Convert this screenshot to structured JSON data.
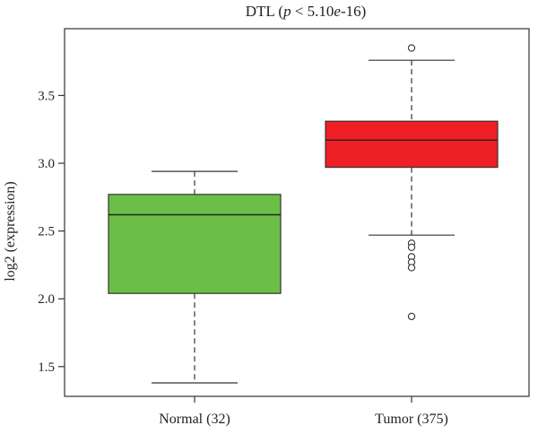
{
  "chart_data": {
    "type": "box",
    "title": {
      "gene": "DTL",
      "p_prefix": " (",
      "p_symbol": "p",
      "p_mid": " < 5.10",
      "p_exp": "e",
      "p_suffix": "-16)"
    },
    "ylabel": "log2 (expression)",
    "xlabel": "",
    "ylim": [
      1.36,
      3.9
    ],
    "yticks": [
      1.5,
      2.0,
      2.5,
      3.0,
      3.5
    ],
    "ytick_labels": [
      "1.5",
      "2.0",
      "2.5",
      "3.0",
      "3.5"
    ],
    "categories": [
      "Normal (32)",
      "Tumor (375)"
    ],
    "groups": [
      {
        "category": "Normal (32)",
        "color": "#6BBF47",
        "whisker_low": 1.38,
        "q1": 2.04,
        "median": 2.62,
        "q3": 2.77,
        "whisker_high": 2.94,
        "outliers": []
      },
      {
        "category": "Tumor (375)",
        "color": "#EE1F25",
        "whisker_low": 2.47,
        "q1": 2.97,
        "median": 3.17,
        "q3": 3.31,
        "whisker_high": 3.76,
        "outliers": [
          3.85,
          2.41,
          2.38,
          2.31,
          2.27,
          2.23,
          1.87
        ]
      }
    ],
    "grid": false,
    "legend": "none"
  }
}
